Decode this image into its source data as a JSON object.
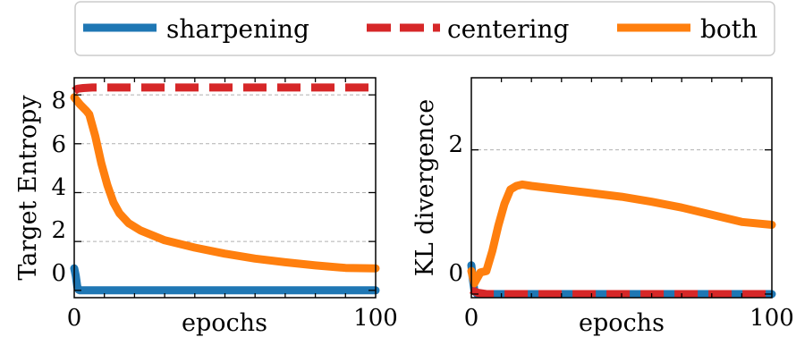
{
  "legend": {
    "placement": "top-center",
    "entries": [
      {
        "label": "sharpening",
        "color": "#1f77b4",
        "style": "solid"
      },
      {
        "label": "centering",
        "color": "#d62728",
        "style": "dashed"
      },
      {
        "label": "both",
        "color": "#ff7f0e",
        "style": "solid"
      }
    ]
  },
  "chart_data": [
    {
      "type": "line",
      "title": "",
      "xlabel": "epochs",
      "ylabel": "Target Entropy",
      "xlim": [
        0,
        100
      ],
      "ylim": [
        -0.3,
        8.7
      ],
      "xticks": [
        0,
        100
      ],
      "xtick_labels": [
        "0",
        "100"
      ],
      "yticks": [
        0,
        2,
        4,
        6,
        8
      ],
      "ytick_labels": [
        "0",
        "2",
        "4",
        "6",
        "8"
      ],
      "grid": "y-dashed",
      "series": [
        {
          "name": "sharpening",
          "color": "#1f77b4",
          "style": "solid",
          "x": [
            0,
            0.5,
            1,
            1.5,
            2,
            5,
            10,
            30,
            60,
            100
          ],
          "y": [
            0.9,
            0.6,
            0.15,
            0.02,
            0,
            0,
            0,
            0,
            0,
            0
          ]
        },
        {
          "name": "centering",
          "color": "#d62728",
          "style": "dashed",
          "x": [
            0,
            1,
            3,
            6,
            10,
            20,
            40,
            60,
            80,
            100
          ],
          "y": [
            8.15,
            8.25,
            8.28,
            8.3,
            8.3,
            8.3,
            8.3,
            8.3,
            8.3,
            8.3
          ]
        },
        {
          "name": "both",
          "color": "#ff7f0e",
          "style": "solid",
          "x": [
            0,
            2,
            4,
            5,
            7,
            9,
            11,
            13,
            15,
            18,
            22,
            30,
            40,
            50,
            60,
            70,
            80,
            90,
            100
          ],
          "y": [
            7.9,
            7.6,
            7.35,
            7.2,
            6.3,
            5.2,
            4.3,
            3.6,
            3.15,
            2.75,
            2.45,
            2.05,
            1.75,
            1.5,
            1.3,
            1.15,
            1.02,
            0.92,
            0.9
          ]
        }
      ]
    },
    {
      "type": "line",
      "title": "",
      "xlabel": "epochs",
      "ylabel": "KL divergence",
      "xlim": [
        0,
        100
      ],
      "ylim": [
        -0.05,
        3.0
      ],
      "xticks": [
        0,
        100
      ],
      "xtick_labels": [
        "0",
        "100"
      ],
      "yticks": [
        0,
        2
      ],
      "ytick_labels": [
        "0",
        "2"
      ],
      "grid": "y-dashed",
      "series": [
        {
          "name": "sharpening",
          "color": "#1f77b4",
          "style": "solid",
          "x": [
            0,
            0.5,
            1,
            2,
            5,
            100
          ],
          "y": [
            0.4,
            0.2,
            0.05,
            0,
            0,
            0
          ]
        },
        {
          "name": "centering",
          "color": "#d62728",
          "style": "dashed",
          "x": [
            0,
            2,
            5,
            100
          ],
          "y": [
            0.06,
            0.02,
            0,
            0
          ]
        },
        {
          "name": "both",
          "color": "#ff7f0e",
          "style": "solid",
          "x": [
            0,
            1,
            3,
            5,
            7,
            9,
            11,
            13,
            15,
            17,
            20,
            30,
            40,
            50,
            60,
            70,
            80,
            90,
            100
          ],
          "y": [
            0.32,
            0.15,
            0.3,
            0.32,
            0.6,
            0.95,
            1.25,
            1.45,
            1.5,
            1.52,
            1.5,
            1.45,
            1.4,
            1.35,
            1.28,
            1.2,
            1.1,
            1.0,
            0.96
          ]
        }
      ]
    }
  ]
}
